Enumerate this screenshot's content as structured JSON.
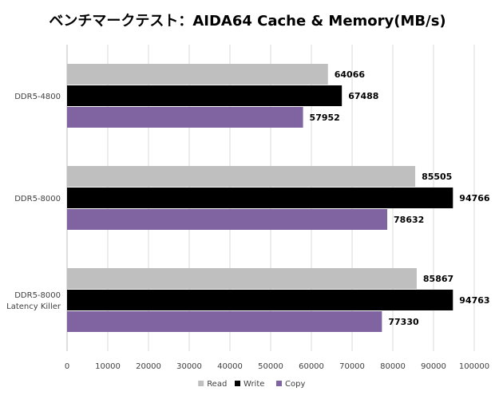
{
  "chart_data": {
    "type": "bar",
    "orientation": "horizontal",
    "title": "ベンチマークテスト：AIDA64 Cache & Memory(MB/s)",
    "categories": [
      [
        "DDR5-4800"
      ],
      [
        "DDR5-8000"
      ],
      [
        "DDR5-8000",
        "Latency Killer"
      ]
    ],
    "series": [
      {
        "name": "Read",
        "color": "#BFBFBF",
        "values": [
          64066,
          85505,
          85867
        ]
      },
      {
        "name": "Write",
        "color": "#000000",
        "values": [
          67488,
          94766,
          94763
        ]
      },
      {
        "name": "Copy",
        "color": "#8064A2",
        "values": [
          57952,
          78632,
          77330
        ]
      }
    ],
    "xlim": [
      0,
      100000
    ],
    "xticks": [
      0,
      10000,
      20000,
      30000,
      40000,
      50000,
      60000,
      70000,
      80000,
      90000,
      100000
    ],
    "grid": true,
    "legend_position": "bottom",
    "data_labels": true
  }
}
